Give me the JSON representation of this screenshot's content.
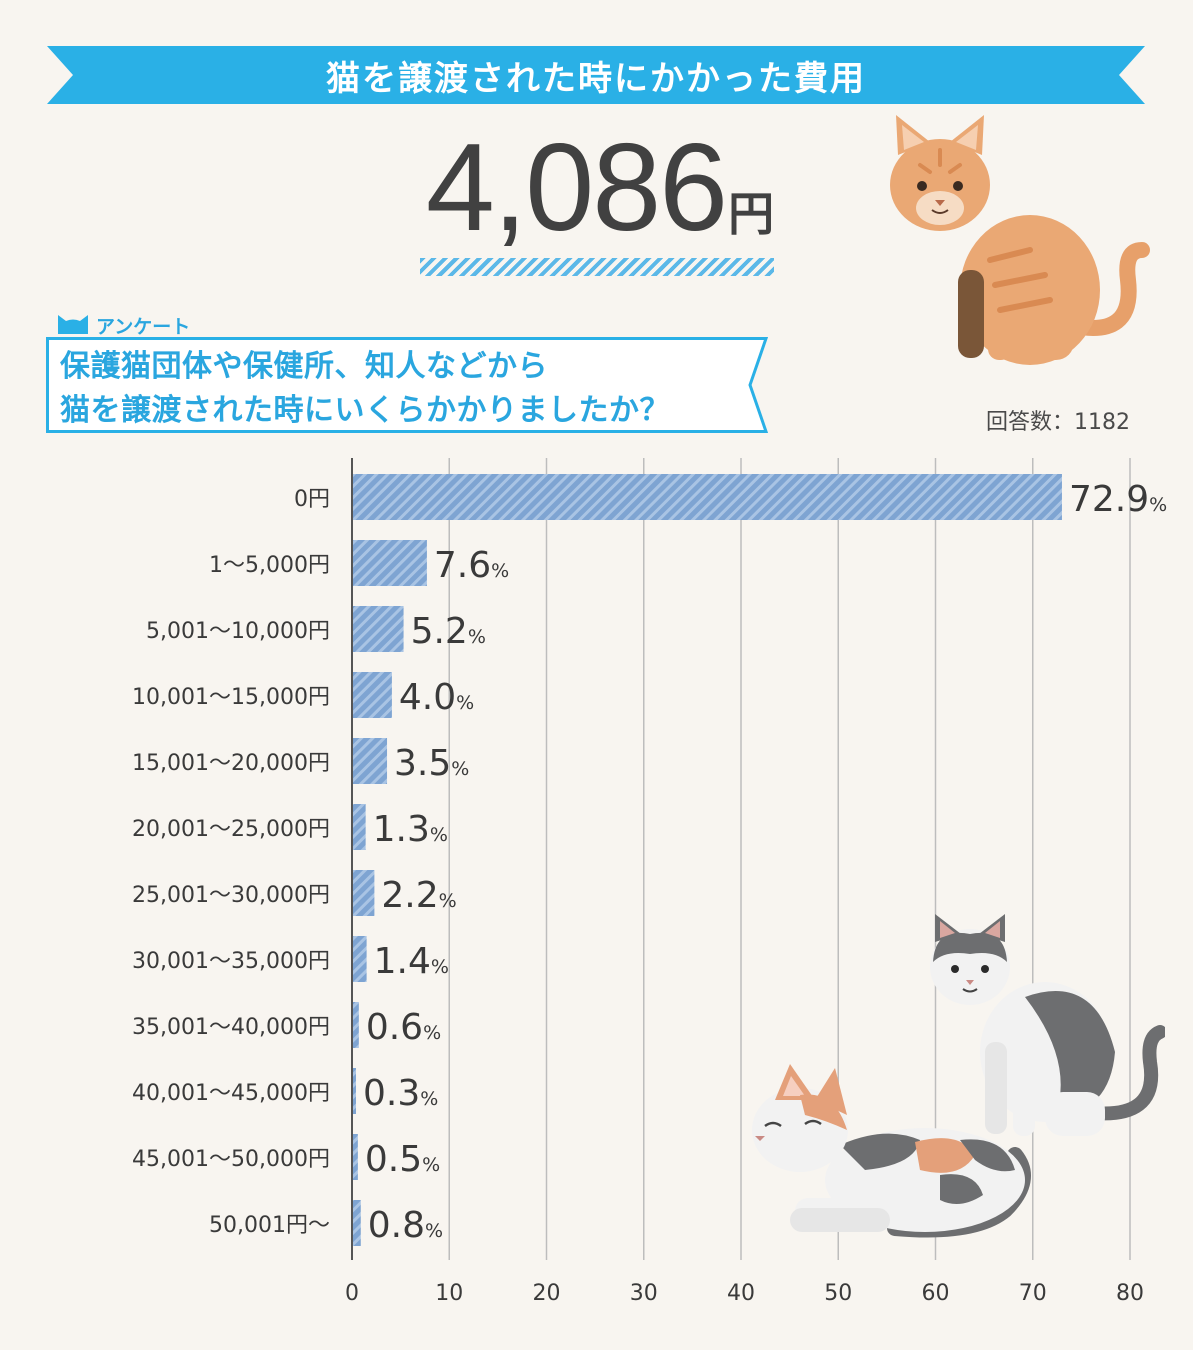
{
  "banner": {
    "title": "猫を譲渡された時にかかった費用",
    "color": "#2ab0e6"
  },
  "summary": {
    "value": "4,086",
    "unit": "円"
  },
  "survey": {
    "tag": "アンケート",
    "question_line1": "保護猫団体や保健所、知人などから",
    "question_line2": "猫を譲渡された時にいくらかかりましたか？",
    "response_count": "回答数：1182"
  },
  "colors": {
    "accent": "#2ab0e6",
    "bar": "#7ea4d2",
    "bar_stripe": "#a9c4e4",
    "grid": "#bdbdbd",
    "background": "#f8f5f0",
    "text": "#3a3a3a"
  },
  "icons": [
    "cat-ear-icon",
    "orange-tabby-cat-illustration",
    "gray-white-cat-illustration",
    "calico-cat-illustration"
  ],
  "chart_data": {
    "type": "bar",
    "orientation": "horizontal",
    "categories": [
      "0円",
      "1〜5,000円",
      "5,001〜10,000円",
      "10,001〜15,000円",
      "15,001〜20,000円",
      "20,001〜25,000円",
      "25,001〜30,000円",
      "30,001〜35,000円",
      "35,001〜40,000円",
      "40,001〜45,000円",
      "45,001〜50,000円",
      "50,001円〜"
    ],
    "values": [
      72.9,
      7.6,
      5.2,
      4.0,
      3.5,
      1.3,
      2.2,
      1.4,
      0.6,
      0.3,
      0.5,
      0.8
    ],
    "value_labels": [
      "72.9",
      "7.6",
      "5.2",
      "4.0",
      "3.5",
      "1.3",
      "2.2",
      "1.4",
      "0.6",
      "0.3",
      "0.5",
      "0.8"
    ],
    "value_suffix": "%",
    "xlim": [
      0,
      80
    ],
    "xticks": [
      "0",
      "10",
      "20",
      "30",
      "40",
      "50",
      "60",
      "70",
      "80"
    ],
    "grid": true,
    "title": "",
    "xlabel": "",
    "ylabel": ""
  }
}
